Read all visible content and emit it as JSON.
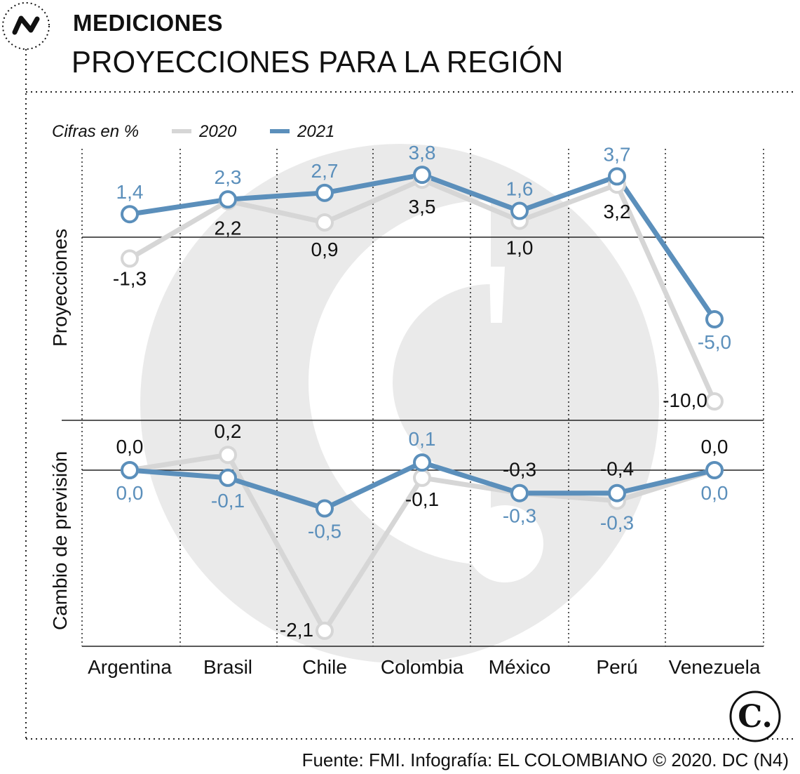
{
  "header": {
    "kicker": "MEDICIONES",
    "title": "PROYECCIONES PARA LA REGIÓN",
    "icon": "trend-line-icon"
  },
  "legend": {
    "units": "Cifras en %",
    "items": [
      {
        "label": "2020",
        "color": "#d6d6d6"
      },
      {
        "label": "2021",
        "color": "#5b8fbb"
      }
    ]
  },
  "panels": {
    "top_title": "Proyecciones",
    "bottom_title": "Cambio de previsión"
  },
  "footer": {
    "source": "Fuente: FMI. Infografía: EL COLOMBIANO © 2020. DC (N4)",
    "logo_text": "C."
  },
  "colors": {
    "series_2020": "#d6d6d6",
    "series_2021": "#5b8fbb",
    "label_2021": "#5b8fbb",
    "label_2020": "#111111",
    "watermark": "#eaeaea"
  },
  "chart_data": [
    {
      "type": "line",
      "panel": "Proyecciones",
      "categories": [
        "Argentina",
        "Brasil",
        "Chile",
        "Colombia",
        "México",
        "Perú",
        "Venezuela"
      ],
      "ylim": [
        -10,
        4
      ],
      "series": [
        {
          "name": "2020",
          "values": [
            -1.3,
            2.2,
            0.9,
            3.5,
            1.0,
            3.2,
            -10.0
          ],
          "labels": [
            "-1,3",
            "2,2",
            "0,9",
            "3,5",
            "1,0",
            "3,2",
            "-10,0"
          ]
        },
        {
          "name": "2021",
          "values": [
            1.4,
            2.3,
            2.7,
            3.8,
            1.6,
            3.7,
            -5.0
          ],
          "labels": [
            "1,4",
            "2,3",
            "2,7",
            "3,8",
            "1,6",
            "3,7",
            "-5,0"
          ]
        }
      ]
    },
    {
      "type": "line",
      "panel": "Cambio de previsión",
      "categories": [
        "Argentina",
        "Brasil",
        "Chile",
        "Colombia",
        "México",
        "Perú",
        "Venezuela"
      ],
      "ylim": [
        -2.1,
        0.2
      ],
      "series": [
        {
          "name": "2020",
          "values": [
            0.0,
            0.2,
            -2.1,
            -0.1,
            -0.3,
            -0.4,
            0.0
          ],
          "labels": [
            "0,0",
            "0,2",
            "-2,1",
            "-0,1",
            "-0,3",
            "-0,4",
            "0,0"
          ]
        },
        {
          "name": "2021",
          "values": [
            0.0,
            -0.1,
            -0.5,
            0.1,
            -0.3,
            -0.3,
            0.0
          ],
          "labels": [
            "0,0",
            "-0,1",
            "-0,5",
            "0,1",
            "-0,3",
            "-0,3",
            "0,0"
          ]
        }
      ]
    }
  ]
}
